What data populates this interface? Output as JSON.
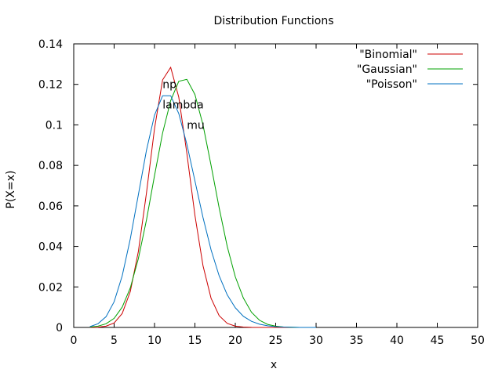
{
  "chart_data": {
    "type": "line",
    "title": "Distribution Functions",
    "xlabel": "x",
    "ylabel": "P(X=x)",
    "xlim": [
      0,
      50
    ],
    "ylim": [
      0,
      0.14
    ],
    "xticks": [
      0,
      5,
      10,
      15,
      20,
      25,
      30,
      35,
      40,
      45,
      50
    ],
    "yticks": [
      0,
      0.02,
      0.04,
      0.06,
      0.08,
      0.1,
      0.12,
      0.14
    ],
    "ytick_labels": [
      "0",
      "0.02",
      "0.04",
      "0.06",
      "0.08",
      "0.1",
      "0.12",
      "0.14"
    ],
    "grid": false,
    "legend": "top-right",
    "annotations": [
      {
        "text": "np",
        "x": 11,
        "y": 0.12
      },
      {
        "text": "lambda",
        "x": 11,
        "y": 0.11
      },
      {
        "text": "mu",
        "x": 14,
        "y": 0.1
      }
    ],
    "series": [
      {
        "name": "\"Binomial\"",
        "color": "#cc0000",
        "x": [
          2,
          3,
          4,
          5,
          6,
          7,
          8,
          9,
          10,
          11,
          12,
          13,
          14,
          15,
          16,
          17,
          18,
          19,
          20,
          21,
          22,
          23,
          24,
          25,
          26,
          27,
          28,
          29,
          30
        ],
        "y": [
          3e-05,
          0.0001,
          0.0006,
          0.0022,
          0.0069,
          0.0177,
          0.0375,
          0.0663,
          0.0982,
          0.1222,
          0.1284,
          0.1137,
          0.086,
          0.0554,
          0.0305,
          0.0144,
          0.0058,
          0.002,
          0.0006,
          0.0002,
          4e-05,
          1e-05,
          0,
          0,
          0,
          0,
          0,
          0,
          0
        ]
      },
      {
        "name": "\"Gaussian\"",
        "color": "#00a000",
        "x": [
          2,
          3,
          4,
          5,
          6,
          7,
          8,
          9,
          10,
          11,
          12,
          13,
          14,
          15,
          16,
          17,
          18,
          19,
          20,
          21,
          22,
          23,
          24,
          25,
          26,
          27,
          28,
          29,
          30
        ],
        "y": [
          0.0002,
          0.0006,
          0.0018,
          0.0045,
          0.01,
          0.0195,
          0.034,
          0.053,
          0.075,
          0.096,
          0.112,
          0.1215,
          0.1225,
          0.115,
          0.1,
          0.08,
          0.059,
          0.04,
          0.025,
          0.0145,
          0.0075,
          0.0035,
          0.0015,
          0.0006,
          0.0002,
          0.0001,
          0,
          0,
          0
        ]
      },
      {
        "name": "\"Poisson\"",
        "color": "#0070c0",
        "x": [
          2,
          3,
          4,
          5,
          6,
          7,
          8,
          9,
          10,
          11,
          12,
          13,
          14,
          15,
          16,
          17,
          18,
          19,
          20,
          21,
          22,
          23,
          24,
          25,
          26,
          27,
          28,
          29,
          30
        ],
        "y": [
          0.0004,
          0.0018,
          0.0053,
          0.0127,
          0.0255,
          0.0437,
          0.0655,
          0.0874,
          0.1048,
          0.1144,
          0.1144,
          0.1056,
          0.0905,
          0.0724,
          0.0543,
          0.0383,
          0.0255,
          0.0161,
          0.0097,
          0.0055,
          0.003,
          0.0016,
          0.0008,
          0.0004,
          0.0002,
          0.0001,
          0,
          0,
          0
        ]
      }
    ]
  }
}
